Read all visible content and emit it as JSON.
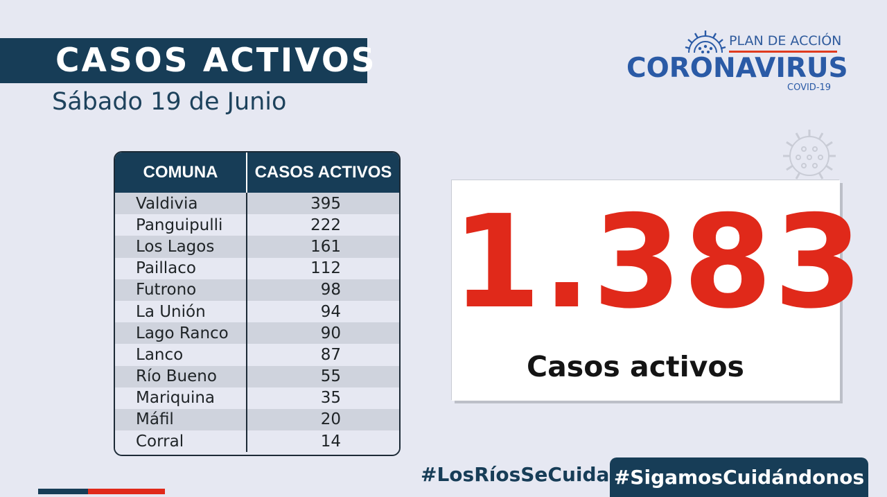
{
  "header": {
    "title": "CASOS ACTIVOS",
    "date": "Sábado 19 de Junio"
  },
  "logo": {
    "plan": "PLAN DE ACCIÓN",
    "main": "CORONAVIRUS",
    "sub": "COVID-19",
    "icon": "virus-icon"
  },
  "table": {
    "headers": [
      "COMUNA",
      "CASOS ACTIVOS"
    ],
    "rows": [
      {
        "comuna": "Valdivia",
        "casos": "395"
      },
      {
        "comuna": "Panguipulli",
        "casos": "222"
      },
      {
        "comuna": "Los Lagos",
        "casos": "161"
      },
      {
        "comuna": "Paillaco",
        "casos": "112"
      },
      {
        "comuna": "Futrono",
        "casos": "98"
      },
      {
        "comuna": "La Unión",
        "casos": "94"
      },
      {
        "comuna": "Lago Ranco",
        "casos": "90"
      },
      {
        "comuna": "Lanco",
        "casos": "87"
      },
      {
        "comuna": "Río Bueno",
        "casos": "55"
      },
      {
        "comuna": "Mariquina",
        "casos": "35"
      },
      {
        "comuna": "Máfil",
        "casos": "20"
      },
      {
        "comuna": "Corral",
        "casos": "14"
      }
    ]
  },
  "total": {
    "number": "1.383",
    "label": "Casos activos"
  },
  "footer": {
    "hashtag1": "#LosRíosSeCuida",
    "hashtag2": "#SigamosCuidándonos"
  },
  "colors": {
    "navy": "#173d57",
    "red": "#e0291a",
    "logo_blue": "#2a5aa6",
    "background": "#e6e8f2"
  }
}
